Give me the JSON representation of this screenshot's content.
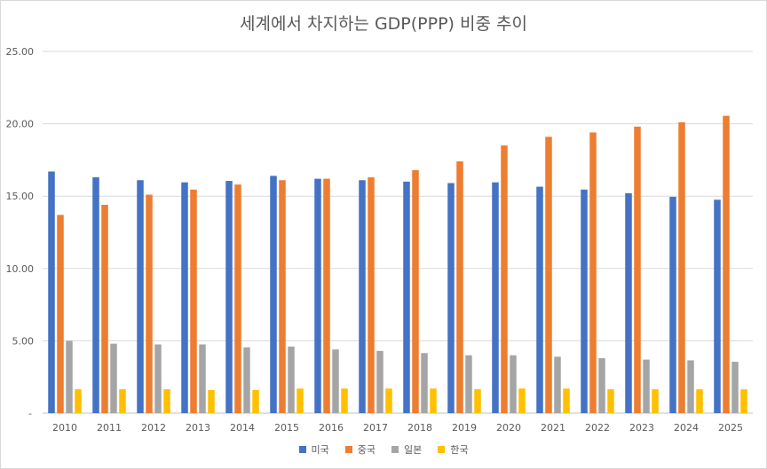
{
  "chart_data": {
    "type": "bar",
    "title": "세계에서 차지하는 GDP(PPP) 비중 추이",
    "categories": [
      "2010",
      "2011",
      "2012",
      "2013",
      "2014",
      "2015",
      "2016",
      "2017",
      "2018",
      "2019",
      "2020",
      "2021",
      "2022",
      "2023",
      "2024",
      "2025"
    ],
    "ylim": [
      0,
      25
    ],
    "yticks": [
      "-",
      "5.00",
      "10.00",
      "15.00",
      "20.00",
      "25.00"
    ],
    "grid": true,
    "legend_position": "bottom",
    "series": [
      {
        "name": "미국",
        "color": "#4472C4",
        "values": [
          16.7,
          16.3,
          16.1,
          15.95,
          16.05,
          16.4,
          16.2,
          16.1,
          16.0,
          15.9,
          15.95,
          15.65,
          15.45,
          15.2,
          14.95,
          14.75
        ]
      },
      {
        "name": "중국",
        "color": "#ED7D31",
        "values": [
          13.7,
          14.4,
          15.1,
          15.45,
          15.8,
          16.1,
          16.2,
          16.3,
          16.8,
          17.4,
          18.5,
          19.1,
          19.4,
          19.8,
          20.1,
          20.55
        ]
      },
      {
        "name": "일본",
        "color": "#A5A5A5",
        "values": [
          5.0,
          4.8,
          4.75,
          4.75,
          4.55,
          4.6,
          4.4,
          4.3,
          4.15,
          4.0,
          4.0,
          3.9,
          3.8,
          3.7,
          3.65,
          3.55
        ]
      },
      {
        "name": "한국",
        "color": "#FFC000",
        "values": [
          1.65,
          1.65,
          1.65,
          1.6,
          1.6,
          1.7,
          1.7,
          1.7,
          1.7,
          1.65,
          1.7,
          1.7,
          1.65,
          1.65,
          1.65,
          1.65
        ]
      }
    ]
  }
}
